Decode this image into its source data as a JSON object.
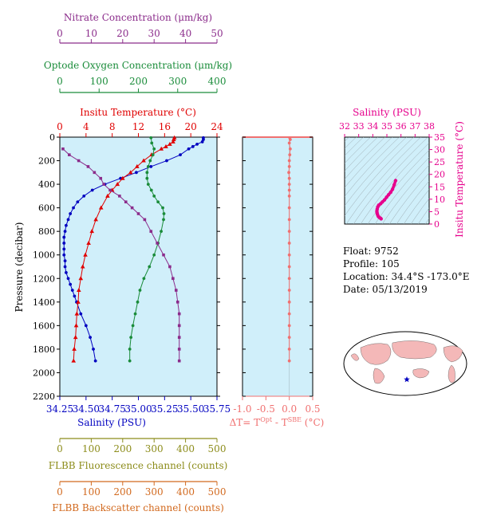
{
  "colors": {
    "nitrate": "#8b2c8b",
    "oxygen": "#1a8c3a",
    "temperature": "#e00000",
    "salinity": "#0000c0",
    "delta_t": "#f07070",
    "ts_curve": "#e6008c",
    "flbb_fluor": "#8c8c1a",
    "flbb_back": "#d2691e",
    "plot_bg": "#d0effa"
  },
  "info": {
    "float": "Float:  9752",
    "profile": "Profile:  105",
    "location": "Location:  34.4°S  -173.0°E",
    "date": "Date:  05/13/2019"
  },
  "chart_data": [
    {
      "type": "line",
      "y_axis": {
        "label": "Pressure (decibar)",
        "ticks": [
          "0",
          "200",
          "400",
          "600",
          "800",
          "1000",
          "1200",
          "1400",
          "1600",
          "1800",
          "2000",
          "2200"
        ],
        "range": [
          0,
          2200
        ],
        "inverted": true
      },
      "axes": {
        "salinity": {
          "label": "Salinity (PSU)",
          "range": [
            34.25,
            35.75
          ],
          "ticks": [
            "34.25",
            "34.50",
            "34.75",
            "35.00",
            "35.25",
            "35.50",
            "35.75"
          ]
        },
        "temperature": {
          "label": "Insitu Temperature (°C)",
          "range": [
            0,
            24
          ],
          "ticks": [
            "0",
            "4",
            "8",
            "12",
            "16",
            "20",
            "24"
          ]
        },
        "oxygen": {
          "label": "Optode Oxygen Concentration (μm/kg)",
          "range": [
            0,
            400
          ],
          "ticks": [
            "0",
            "100",
            "200",
            "300",
            "400"
          ]
        },
        "nitrate": {
          "label": "Nitrate Concentration (μm/kg)",
          "range": [
            0,
            50
          ],
          "ticks": [
            "0",
            "10",
            "20",
            "30",
            "40",
            "50"
          ]
        },
        "fluorescence": {
          "label": "FLBB Fluorescence channel (counts)",
          "range": [
            0,
            500
          ],
          "ticks": [
            "0",
            "100",
            "200",
            "300",
            "400",
            "500"
          ]
        },
        "backscatter": {
          "label": "FLBB Backscatter channel (counts)",
          "range": [
            0,
            500
          ],
          "ticks": [
            "0",
            "100",
            "200",
            "300",
            "400",
            "500"
          ]
        }
      },
      "series": [
        {
          "key": "salinity",
          "pressure": [
            5,
            20,
            40,
            60,
            80,
            100,
            150,
            200,
            250,
            300,
            350,
            400,
            450,
            500,
            550,
            600,
            650,
            700,
            750,
            800,
            850,
            900,
            950,
            1000,
            1050,
            1100,
            1150,
            1200,
            1250,
            1300,
            1350,
            1400,
            1500,
            1600,
            1700,
            1800,
            1900
          ],
          "values": [
            35.62,
            35.62,
            35.61,
            35.56,
            35.52,
            35.48,
            35.4,
            35.27,
            35.12,
            34.98,
            34.83,
            34.68,
            34.56,
            34.48,
            34.42,
            34.38,
            34.35,
            34.33,
            34.31,
            34.3,
            34.29,
            34.29,
            34.29,
            34.29,
            34.3,
            34.3,
            34.31,
            34.33,
            34.35,
            34.37,
            34.39,
            34.41,
            34.45,
            34.5,
            34.54,
            34.57,
            34.59
          ]
        },
        {
          "key": "temperature",
          "pressure": [
            5,
            20,
            40,
            60,
            80,
            100,
            150,
            200,
            250,
            300,
            350,
            400,
            450,
            500,
            600,
            700,
            800,
            900,
            1000,
            1100,
            1200,
            1300,
            1400,
            1500,
            1600,
            1700,
            1800,
            1900
          ],
          "values": [
            17.5,
            17.4,
            17.3,
            16.8,
            16.2,
            15.5,
            14.0,
            12.8,
            11.8,
            10.8,
            9.6,
            8.8,
            8.0,
            7.3,
            6.3,
            5.5,
            4.9,
            4.4,
            3.9,
            3.5,
            3.2,
            2.9,
            2.8,
            2.6,
            2.5,
            2.4,
            2.2,
            2.1
          ]
        },
        {
          "key": "oxygen",
          "pressure": [
            5,
            50,
            100,
            150,
            200,
            250,
            300,
            350,
            400,
            450,
            500,
            550,
            600,
            650,
            700,
            800,
            900,
            1000,
            1100,
            1200,
            1300,
            1400,
            1500,
            1600,
            1700,
            1800,
            1900
          ],
          "values": [
            232,
            234,
            240,
            237,
            230,
            225,
            222,
            222,
            225,
            233,
            240,
            250,
            262,
            265,
            264,
            258,
            250,
            240,
            228,
            214,
            204,
            198,
            192,
            186,
            181,
            178,
            178
          ]
        },
        {
          "key": "nitrate",
          "pressure": [
            100,
            150,
            200,
            250,
            300,
            350,
            400,
            450,
            500,
            550,
            600,
            650,
            700,
            800,
            900,
            1000,
            1100,
            1200,
            1300,
            1400,
            1500,
            1600,
            1700,
            1800,
            1900
          ],
          "values": [
            1,
            3,
            6,
            9,
            11,
            13,
            14,
            16,
            19,
            21,
            23,
            25,
            27,
            29,
            31,
            33,
            35,
            36,
            37,
            37.5,
            38,
            38,
            38,
            38,
            38
          ]
        }
      ]
    },
    {
      "type": "line",
      "x_axis": {
        "label": "ΔT= T",
        "sup1": "Opt",
        "minus": " - T",
        "sup2": "SBE",
        "unit": " (°C)",
        "range": [
          -1.0,
          0.5
        ],
        "ticks": [
          "-1.0",
          "-0.5",
          "0.0",
          "0.5"
        ]
      },
      "series": [
        {
          "key": "delta_t",
          "pressure": [
            5,
            20,
            50,
            100,
            150,
            200,
            250,
            300,
            350,
            400,
            450,
            500,
            600,
            700,
            800,
            900,
            1000,
            1100,
            1200,
            1300,
            1400,
            1500,
            1600,
            1700,
            1800,
            1900
          ],
          "values": [
            0.01,
            0.02,
            0.0,
            0.02,
            0.01,
            0.0,
            0.0,
            -0.01,
            0.0,
            0.0,
            0.0,
            0.0,
            0.0,
            0.0,
            0.0,
            0.0,
            0.0,
            0.0,
            0.0,
            0.0,
            0.0,
            0.0,
            0.0,
            0.0,
            0.0,
            0.0
          ]
        }
      ]
    },
    {
      "type": "scatter",
      "x_axis": {
        "label": "Salinity (PSU)",
        "range": [
          32,
          38
        ],
        "ticks": [
          "32",
          "33",
          "34",
          "35",
          "36",
          "37",
          "38"
        ]
      },
      "y_axis": {
        "label": "Insitu Temperature (°C)",
        "range": [
          0,
          35
        ],
        "ticks": [
          "0",
          "5",
          "10",
          "15",
          "20",
          "25",
          "30",
          "35"
        ]
      },
      "series": [
        {
          "key": "ts_curve",
          "x": [
            34.59,
            34.54,
            34.45,
            34.38,
            34.33,
            34.3,
            34.29,
            34.31,
            34.35,
            34.42,
            34.56,
            34.68,
            34.83,
            34.98,
            35.12,
            35.27,
            35.4,
            35.52,
            35.62
          ],
          "y": [
            2.1,
            2.4,
            2.7,
            3.2,
            3.9,
            4.6,
            5.2,
            6.0,
            6.9,
            7.6,
            8.2,
            8.9,
            9.7,
            10.8,
            11.8,
            12.8,
            14.0,
            15.8,
            17.5
          ]
        }
      ]
    }
  ]
}
